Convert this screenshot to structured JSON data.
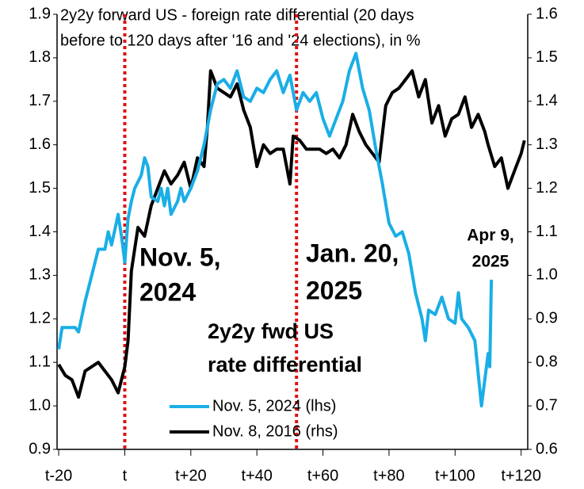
{
  "chart_data": {
    "type": "line",
    "title": [
      "2y2y forward US - foreign rate differential (20 days",
      "before to 120 days after '16 and '24 elections), in %"
    ],
    "xlim": [
      -20.5,
      122
    ],
    "xticks": [
      {
        "value": -20,
        "label": "t-20"
      },
      {
        "value": 0,
        "label": "t"
      },
      {
        "value": 20,
        "label": "t+20"
      },
      {
        "value": 40,
        "label": "t+40"
      },
      {
        "value": 60,
        "label": "t+60"
      },
      {
        "value": 80,
        "label": "t+80"
      },
      {
        "value": 100,
        "label": "t+100"
      },
      {
        "value": 120,
        "label": "t+120"
      }
    ],
    "ylim": [
      0.9,
      1.9
    ],
    "yticks": [
      0.9,
      {
        "value": 1.0,
        "label": "1.0"
      },
      1.1,
      1.2,
      1.3,
      1.4,
      1.5,
      1.6,
      1.7,
      1.8,
      1.9
    ],
    "y2lim": [
      0.6,
      1.6
    ],
    "y2ticks": [
      0.6,
      0.7,
      0.8,
      0.9,
      {
        "value": 1.0,
        "label": "1.0"
      },
      1.1,
      1.2,
      1.3,
      1.4,
      1.5,
      1.6
    ],
    "grid": false,
    "legend": "bottom",
    "vlines": {
      "color": "#e01010",
      "values": [
        0,
        52
      ]
    },
    "series": [
      {
        "name": "Nov. 5, 2024 (lhs)",
        "color": "#1aaee6",
        "axis": "y",
        "x": [
          -20,
          -19,
          -17,
          -15,
          -14,
          -12,
          -10,
          -8,
          -6,
          -5,
          -4,
          -2,
          -1,
          0,
          1,
          2,
          3,
          5,
          6,
          7,
          8,
          10,
          11,
          12,
          13,
          14,
          16,
          17,
          18,
          20,
          22,
          24,
          26,
          28,
          30,
          32,
          34,
          36,
          38,
          40,
          42,
          44,
          46,
          48,
          50,
          52,
          54,
          56,
          58,
          60,
          62,
          64,
          66,
          68,
          70,
          72,
          74,
          76,
          78,
          80,
          82,
          84,
          86,
          88,
          90,
          91,
          92,
          94,
          96,
          98,
          100,
          101,
          102,
          104,
          106,
          108,
          110,
          110.5,
          111
        ],
        "values": [
          1.13,
          1.18,
          1.18,
          1.18,
          1.17,
          1.24,
          1.3,
          1.36,
          1.36,
          1.4,
          1.37,
          1.44,
          1.39,
          1.33,
          1.43,
          1.47,
          1.5,
          1.53,
          1.57,
          1.55,
          1.48,
          1.47,
          1.5,
          1.46,
          1.5,
          1.44,
          1.47,
          1.5,
          1.47,
          1.5,
          1.54,
          1.6,
          1.68,
          1.74,
          1.75,
          1.73,
          1.77,
          1.71,
          1.7,
          1.73,
          1.72,
          1.75,
          1.77,
          1.72,
          1.76,
          1.68,
          1.72,
          1.7,
          1.72,
          1.66,
          1.62,
          1.66,
          1.7,
          1.77,
          1.81,
          1.73,
          1.68,
          1.59,
          1.51,
          1.42,
          1.39,
          1.4,
          1.35,
          1.26,
          1.2,
          1.15,
          1.22,
          1.21,
          1.25,
          1.2,
          1.19,
          1.26,
          1.2,
          1.18,
          1.15,
          1.0,
          1.12,
          1.09,
          1.29
        ]
      },
      {
        "name": "Nov. 8, 2016 (rhs)",
        "color": "#000000",
        "axis": "y2",
        "x": [
          -20,
          -18,
          -16,
          -14,
          -12,
          -10,
          -8,
          -6,
          -4,
          -2,
          0,
          1,
          2,
          4,
          6,
          8,
          10,
          12,
          14,
          16,
          18,
          20,
          22,
          24,
          25,
          26,
          28,
          30,
          32,
          34,
          36,
          38,
          40,
          42,
          44,
          46,
          48,
          50,
          51,
          53,
          55,
          57,
          59,
          61,
          63,
          65,
          67,
          69,
          71,
          73,
          75,
          77,
          79,
          81,
          83,
          85,
          87,
          89,
          91,
          93,
          95,
          97,
          99,
          101,
          103,
          105,
          107,
          109,
          110,
          112,
          114,
          116,
          118,
          120,
          121
        ],
        "values": [
          0.795,
          0.77,
          0.76,
          0.72,
          0.78,
          0.79,
          0.8,
          0.78,
          0.76,
          0.73,
          0.79,
          0.85,
          1.01,
          1.11,
          1.09,
          1.16,
          1.2,
          1.24,
          1.21,
          1.23,
          1.26,
          1.2,
          1.27,
          1.25,
          1.34,
          1.47,
          1.43,
          1.42,
          1.41,
          1.44,
          1.38,
          1.34,
          1.25,
          1.3,
          1.28,
          1.29,
          1.29,
          1.21,
          1.32,
          1.31,
          1.29,
          1.29,
          1.29,
          1.28,
          1.29,
          1.27,
          1.3,
          1.37,
          1.33,
          1.3,
          1.28,
          1.26,
          1.39,
          1.42,
          1.43,
          1.45,
          1.47,
          1.41,
          1.45,
          1.35,
          1.39,
          1.32,
          1.36,
          1.37,
          1.41,
          1.34,
          1.37,
          1.33,
          1.3,
          1.25,
          1.27,
          1.2,
          1.24,
          1.28,
          1.31
        ]
      }
    ],
    "annotations": [
      {
        "lines": [
          "Nov. 5,",
          "2024"
        ],
        "color": "#e01010"
      },
      {
        "lines": [
          "Jan. 20,",
          "2025"
        ],
        "color": "#e01010"
      },
      {
        "lines": [
          "Apr 9,",
          "2025"
        ],
        "color": "#1aaee6"
      },
      {
        "lines": [
          "2y2y fwd US",
          "rate differential"
        ],
        "color": "#000000"
      }
    ]
  }
}
